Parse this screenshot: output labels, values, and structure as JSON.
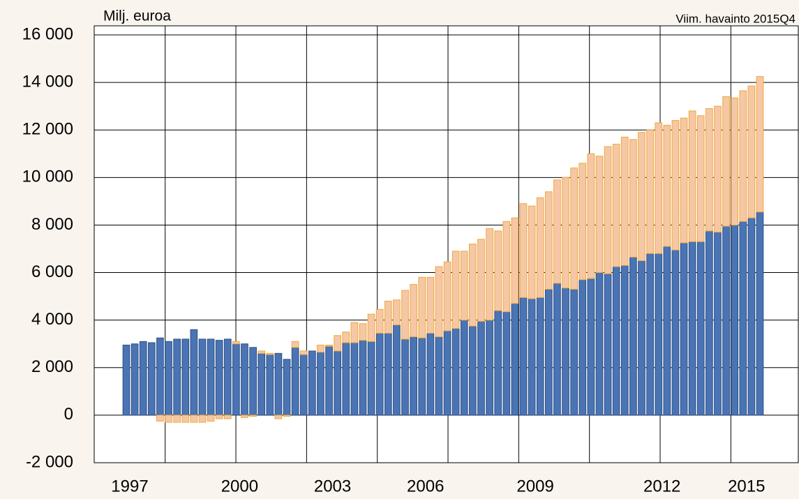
{
  "chart_data": {
    "type": "stacked-bar",
    "subtitle": "Milj. euroa",
    "annotation": "Viim. havainto 2015Q4",
    "categories": [
      "1997",
      null,
      null,
      null,
      null,
      null,
      null,
      null,
      null,
      null,
      null,
      null,
      null,
      "2000",
      null,
      null,
      null,
      null,
      null,
      null,
      null,
      null,
      null,
      null,
      "2003",
      null,
      null,
      null,
      null,
      null,
      null,
      null,
      null,
      null,
      null,
      "2006",
      null,
      null,
      null,
      null,
      null,
      null,
      null,
      null,
      null,
      null,
      null,
      null,
      "2009",
      null,
      null,
      null,
      null,
      null,
      null,
      null,
      null,
      null,
      null,
      null,
      null,
      null,
      null,
      "2012",
      null,
      null,
      null,
      null,
      null,
      null,
      null,
      null,
      null,
      "2015",
      null,
      null
    ],
    "series": [
      {
        "color": "#4a74b4",
        "stroke": "#2c4f86",
        "values": [
          2950,
          3000,
          3100,
          3050,
          3250,
          3100,
          3200,
          3200,
          3600,
          3200,
          3200,
          3150,
          3200,
          3000,
          3000,
          2850,
          2600,
          2550,
          2600,
          2350,
          2850,
          2550,
          2700,
          2650,
          2900,
          2700,
          3050,
          3050,
          3150,
          3100,
          3450,
          3450,
          3800,
          3200,
          3300,
          3250,
          3450,
          3300,
          3550,
          3650,
          4000,
          3750,
          3950,
          4000,
          4400,
          4350,
          4700,
          4950,
          4900,
          4950,
          5300,
          5550,
          5350,
          5300,
          5700,
          5750,
          6000,
          5950,
          6250,
          6300,
          6650,
          6500,
          6800,
          6800,
          7100,
          6950,
          7250,
          7300,
          7300,
          7750,
          7700,
          7950,
          8000,
          8150,
          8300,
          8550
        ]
      },
      {
        "color": "#f6c7a6",
        "stroke": "#eea93a",
        "values": [
          0,
          0,
          0,
          0,
          -250,
          -300,
          -300,
          -300,
          -300,
          -300,
          -250,
          -150,
          -150,
          100,
          -100,
          -50,
          100,
          50,
          -150,
          -50,
          250,
          150,
          0,
          300,
          50,
          650,
          450,
          850,
          700,
          1150,
          1000,
          1350,
          1050,
          2050,
          2200,
          2550,
          2350,
          2950,
          2900,
          3250,
          2900,
          3450,
          3450,
          3850,
          3350,
          3800,
          3600,
          3950,
          3900,
          4200,
          4100,
          4350,
          4650,
          5100,
          4900,
          5250,
          4900,
          5350,
          5150,
          5400,
          4950,
          5400,
          5200,
          5500,
          5100,
          5450,
          5250,
          5500,
          5300,
          5150,
          5300,
          5450,
          5350,
          5500,
          5550,
          5700
        ]
      }
    ],
    "ylim": [
      -2000,
      16000
    ],
    "yticks": [
      {
        "value": -2000,
        "label": "-2 000"
      },
      0,
      {
        "value": 2000,
        "label": "2 000"
      },
      {
        "value": 4000,
        "label": "4 000"
      },
      {
        "value": 6000,
        "label": "6 000"
      },
      {
        "value": 8000,
        "label": "8 000"
      },
      {
        "value": 10000,
        "label": "10 000"
      },
      {
        "value": 12000,
        "label": "12 000"
      },
      {
        "value": 14000,
        "label": "14 000"
      },
      {
        "value": 16000,
        "label": "16 000"
      }
    ],
    "grid": true
  }
}
